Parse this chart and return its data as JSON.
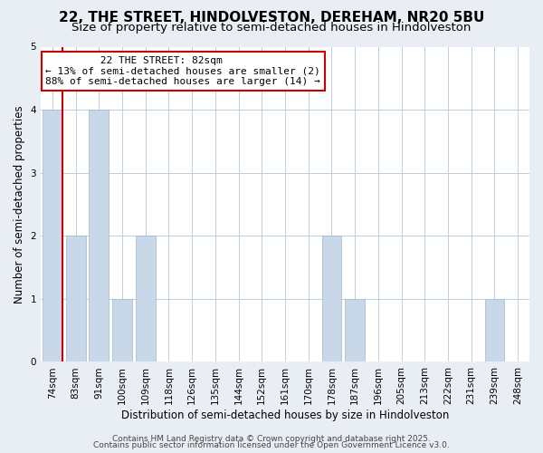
{
  "title": "22, THE STREET, HINDOLVESTON, DEREHAM, NR20 5BU",
  "subtitle": "Size of property relative to semi-detached houses in Hindolveston",
  "xlabel": "Distribution of semi-detached houses by size in Hindolveston",
  "ylabel": "Number of semi-detached properties",
  "categories": [
    "74sqm",
    "83sqm",
    "91sqm",
    "100sqm",
    "109sqm",
    "118sqm",
    "126sqm",
    "135sqm",
    "144sqm",
    "152sqm",
    "161sqm",
    "170sqm",
    "178sqm",
    "187sqm",
    "196sqm",
    "205sqm",
    "213sqm",
    "222sqm",
    "231sqm",
    "239sqm",
    "248sqm"
  ],
  "values": [
    4,
    2,
    4,
    1,
    2,
    0,
    0,
    0,
    0,
    0,
    0,
    0,
    2,
    1,
    0,
    0,
    0,
    0,
    0,
    1,
    0
  ],
  "bar_color": "#c8d8e8",
  "bar_edge_color": "#a0b8cc",
  "vertical_line_x": 0,
  "vertical_line_color": "#cc0000",
  "ylim": [
    0,
    5
  ],
  "yticks": [
    0,
    1,
    2,
    3,
    4,
    5
  ],
  "annotation_title": "22 THE STREET: 82sqm",
  "annotation_line1": "← 13% of semi-detached houses are smaller (2)",
  "annotation_line2": "88% of semi-detached houses are larger (14) →",
  "annotation_box_color": "#ffffff",
  "annotation_box_edge": "#cc0000",
  "footer1": "Contains HM Land Registry data © Crown copyright and database right 2025.",
  "footer2": "Contains public sector information licensed under the Open Government Licence v3.0.",
  "background_color": "#e8eef4",
  "plot_background_color": "#ffffff",
  "grid_color": "#c0cfe0",
  "title_fontsize": 11,
  "subtitle_fontsize": 9.5,
  "axis_label_fontsize": 8.5,
  "tick_fontsize": 7.5,
  "annotation_fontsize": 8,
  "footer_fontsize": 6.5
}
